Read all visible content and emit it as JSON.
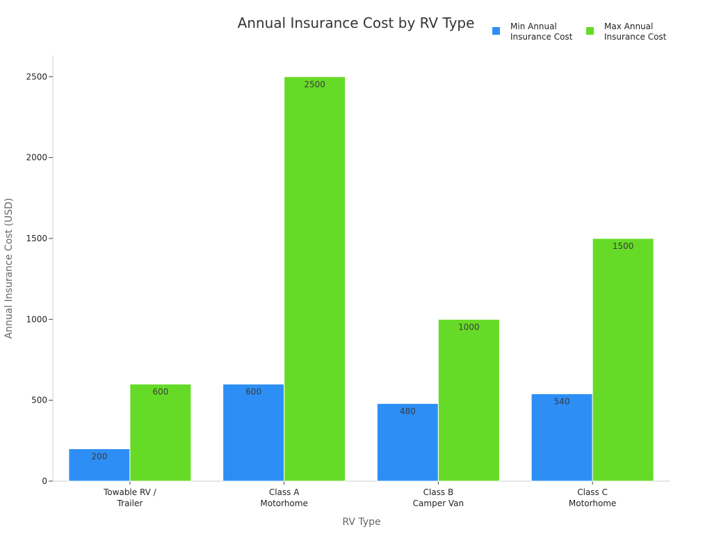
{
  "chart_data": {
    "type": "bar",
    "title": "Annual Insurance Cost by RV Type",
    "xlabel": "RV Type",
    "ylabel": "Annual Insurance Cost (USD)",
    "categories": [
      [
        "Towable RV /",
        "Trailer"
      ],
      [
        "Class A",
        "Motorhome"
      ],
      [
        "Class B",
        "Camper Van"
      ],
      [
        "Class C",
        "Motorhome"
      ]
    ],
    "series": [
      {
        "name": [
          "Min Annual",
          "Insurance Cost"
        ],
        "color": "#2d8ff5",
        "values": [
          200,
          600,
          480,
          540
        ]
      },
      {
        "name": [
          "Max Annual",
          "Insurance Cost"
        ],
        "color": "#66db27",
        "values": [
          600,
          2500,
          1000,
          1500
        ]
      }
    ],
    "yticks": [
      0,
      500,
      1000,
      1500,
      2000,
      2500
    ],
    "ylim": [
      0,
      2630
    ],
    "legend": "top-right",
    "grid": false
  }
}
